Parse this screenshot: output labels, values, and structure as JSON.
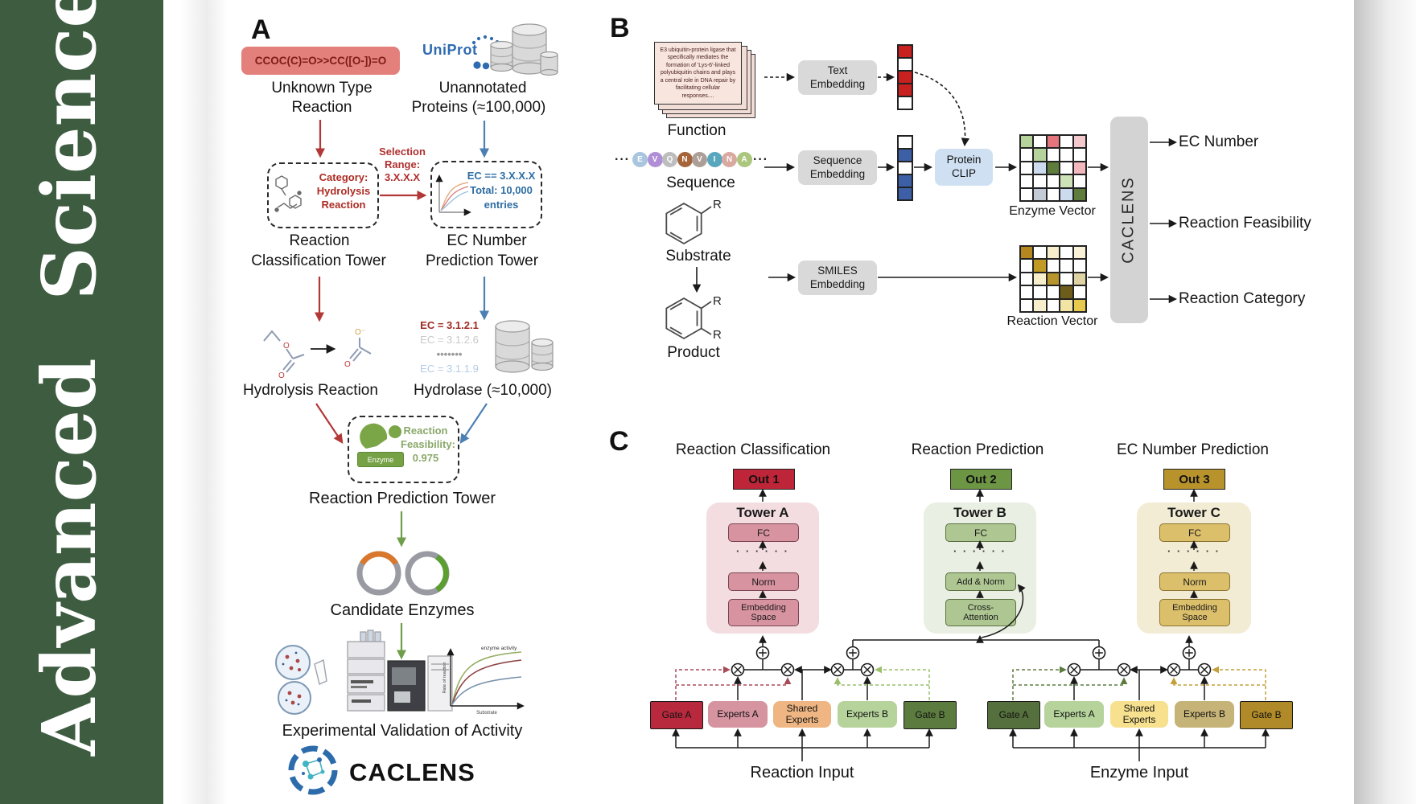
{
  "sidebar": {
    "text": "Advanced Science"
  },
  "colors": {
    "sidebar_green": "#3d5c40",
    "arrow_red": "#b23737",
    "arrow_blue": "#4c80b3",
    "arrow_green": "#6f9e4a",
    "smiles_pill_bg": "#e4807c",
    "uniprot_blue": "#2f6bb0",
    "out1": "#bf2538",
    "out2": "#6d9644",
    "out3": "#b8932b",
    "towerA_bg": "#f3dde1",
    "towerB_bg": "#e9efe2",
    "towerC_bg": "#f3ecd4",
    "gateA_reaction": "#b8293d",
    "gateB_reaction": "#5c7b3e",
    "gateA_enzyme": "#55703c",
    "gateB_enzyme": "#b08a28"
  },
  "panelA": {
    "label": "A",
    "smiles_box": "CCOC(C)=O>>CC([O-])=O",
    "unknown_l1": "Unknown Type",
    "unknown_l2": "Reaction",
    "uniprot": "UniProt",
    "unannotated_l1": "Unannotated",
    "unannotated_l2": "Proteins (≈100,000)",
    "selection_l1": "Selection",
    "selection_l2": "Range:",
    "selection_l3": "3.X.X.X",
    "category_l1": "Category:",
    "category_l2": "Hydrolysis",
    "category_l3": "Reaction",
    "ecbox_l1": "EC == 3.X.X.X",
    "ecbox_l2": "Total: 10,000",
    "ecbox_l3": "entries",
    "tower1_l1": "Reaction",
    "tower1_l2": "Classification Tower",
    "tower2_l1": "EC Number",
    "tower2_l2": "Prediction Tower",
    "hydrolysis_label": "Hydrolysis Reaction",
    "hydrolase_label": "Hydrolase (≈10,000)",
    "ec_list": [
      {
        "text": "EC = 3.1.2.1",
        "color": "#9e2b21",
        "bold": true
      },
      {
        "text": "EC = 3.1.2.6",
        "color": "#c9c9c9",
        "bold": false
      },
      {
        "text": "•••••••",
        "color": "#9a9a9a",
        "bold": true
      },
      {
        "text": "EC = 3.1.1.9",
        "color": "#b3cce6",
        "bold": false
      }
    ],
    "enzyme_badge": "Enzyme",
    "feasibility_l1": "Reaction",
    "feasibility_l2": "Feasibility:",
    "feasibility_l3": "0.975",
    "tower3_label": "Reaction Prediction Tower",
    "candidate_label": "Candidate Enzymes",
    "chart": {
      "ylabel": "Rate of reaction",
      "xlabel": "Substrate",
      "annotation": "enzyme activity"
    },
    "validation_label": "Experimental Validation of Activity",
    "brand": "CACLENS"
  },
  "panelB": {
    "label": "B",
    "function_card": "E3 ubiquitin-protein ligase that specifically mediates the formation of 'Lys-6'-linked polyubiquitin chains and plays a central role in DNA repair by facilitating cellular responses....",
    "function_label": "Function",
    "ellipsis": "···",
    "residues": [
      {
        "letter": "E",
        "color": "#a9c6de"
      },
      {
        "letter": "V",
        "color": "#b08fd6"
      },
      {
        "letter": "Q",
        "color": "#bdbdbd"
      },
      {
        "letter": "N",
        "color": "#a5643a"
      },
      {
        "letter": "V",
        "color": "#ad9f97"
      },
      {
        "letter": "I",
        "color": "#58a7bd"
      },
      {
        "letter": "N",
        "color": "#d9a9a0"
      },
      {
        "letter": "A",
        "color": "#abc77e"
      }
    ],
    "sequence_label": "Sequence",
    "substrate_label": "Substrate",
    "product_label": "Product",
    "r_label": "R",
    "text_embedding_l1": "Text",
    "text_embedding_l2": "Embedding",
    "sequence_embedding_l1": "Sequence",
    "sequence_embedding_l2": "Embedding",
    "smiles_embedding_l1": "SMILES",
    "smiles_embedding_l2": "Embedding",
    "protein_clip_l1": "Protein",
    "protein_clip_l2": "CLIP",
    "text_vector": [
      "#c92020",
      "#ffffff",
      "#c92020",
      "#c92020",
      "#ffffff"
    ],
    "seq_vector": [
      "#ffffff",
      "#3c5fa6",
      "#ffffff",
      "#3c5fa6",
      "#3c5fa6"
    ],
    "enzyme_grid": [
      [
        "#b5d39b",
        "#ffffff",
        "#e4757c",
        "#ffffff",
        "#f4c9cd"
      ],
      [
        "#ffffff",
        "#b5d39b",
        "#ffffff",
        "#ffffff",
        "#ffffff"
      ],
      [
        "#ffffff",
        "#ccdcee",
        "#5e7d3c",
        "#ffffff",
        "#f2b8bd"
      ],
      [
        "#ffffff",
        "#ffffff",
        "#ffffff",
        "#cfe3b8",
        "#ffffff"
      ],
      [
        "#ffffff",
        "#c3ccd6",
        "#ffffff",
        "#ccdcee",
        "#5e7d3c"
      ]
    ],
    "reaction_grid": [
      [
        "#b5871e",
        "#ffffff",
        "#f7eecb",
        "#ffffff",
        "#f9f2d8"
      ],
      [
        "#ffffff",
        "#c09a24",
        "#ffffff",
        "#ffffff",
        "#ffffff"
      ],
      [
        "#ffffff",
        "#f7eecb",
        "#b9952d",
        "#ffffff",
        "#dfd3a3"
      ],
      [
        "#ffffff",
        "#ffffff",
        "#ffffff",
        "#6e5c1a",
        "#ffffff"
      ],
      [
        "#ffffff",
        "#f7eecb",
        "#ffffff",
        "#f2e4a4",
        "#e7c94e"
      ]
    ],
    "enzyme_vector_label": "Enzyme Vector",
    "reaction_vector_label": "Reaction Vector",
    "caclens_bar": "CACLENS",
    "out_ec": "EC Number",
    "out_feasibility": "Reaction Feasibility",
    "out_category": "Reaction Category"
  },
  "panelC": {
    "label": "C",
    "title1": "Reaction Classification",
    "title2": "Reaction Prediction",
    "title3": "EC Number Prediction",
    "out1": "Out 1",
    "out2": "Out 2",
    "out3": "Out 3",
    "towerA": {
      "name": "Tower A",
      "fc": "FC",
      "dots": "· · · · · ·",
      "mid": "Norm",
      "bottom_l1": "Embedding",
      "bottom_l2": "Space"
    },
    "towerB": {
      "name": "Tower B",
      "fc": "FC",
      "dots": "· · · · · ·",
      "mid": "Add & Norm",
      "bottom_l1": "Cross-",
      "bottom_l2": "Attention"
    },
    "towerC": {
      "name": "Tower C",
      "fc": "FC",
      "dots": "· · · · · ·",
      "mid": "Norm",
      "bottom_l1": "Embedding",
      "bottom_l2": "Space"
    },
    "moe1": {
      "gateA": "Gate A",
      "expertsA": "Experts A",
      "shared_l1": "Shared",
      "shared_l2": "Experts",
      "expertsB": "Experts B",
      "gateB": "Gate B",
      "input": "Reaction Input"
    },
    "moe2": {
      "gateA": "Gate A",
      "expertsA": "Experts A",
      "shared_l1": "Shared",
      "shared_l2": "Experts",
      "expertsB": "Experts B",
      "gateB": "Gate B",
      "input": "Enzyme Input"
    }
  }
}
